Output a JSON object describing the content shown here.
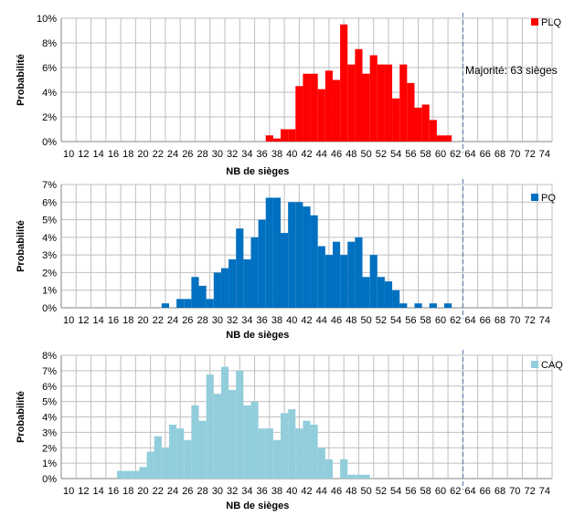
{
  "annotation": "Majorité: 63 sièges",
  "colors": {
    "grid": "#bfbfbf",
    "axis": "#868686",
    "majority_line": "#4f6d9a"
  },
  "chart_data": [
    {
      "type": "bar",
      "legend": "PLQ",
      "color": "#ff0000",
      "xlabel": "NB de sièges",
      "ylabel": "Probabilité",
      "ylim": [
        0,
        10
      ],
      "yticks": [
        "0%",
        "2%",
        "4%",
        "6%",
        "8%",
        "10%"
      ],
      "xticks": [
        "10",
        "12",
        "14",
        "16",
        "18",
        "20",
        "22",
        "24",
        "26",
        "28",
        "30",
        "32",
        "34",
        "36",
        "38",
        "40",
        "42",
        "44",
        "46",
        "48",
        "50",
        "52",
        "54",
        "56",
        "58",
        "60",
        "62",
        "64",
        "66",
        "68",
        "70",
        "72",
        "74"
      ],
      "majority": 63,
      "x": [
        37,
        38,
        39,
        40,
        41,
        42,
        43,
        44,
        45,
        46,
        47,
        48,
        49,
        50,
        51,
        52,
        53,
        54,
        55,
        56,
        57,
        58,
        59,
        60,
        61
      ],
      "values": [
        0.5,
        0.25,
        1.0,
        1.0,
        4.5,
        5.5,
        5.5,
        4.25,
        5.75,
        5.0,
        9.5,
        6.25,
        7.5,
        5.5,
        7.0,
        6.25,
        6.25,
        3.5,
        6.25,
        4.75,
        2.75,
        3.0,
        1.75,
        0.5,
        0.5
      ]
    },
    {
      "type": "bar",
      "legend": "PQ",
      "color": "#0070c0",
      "xlabel": "NB de sièges",
      "ylabel": "Probabilité",
      "ylim": [
        0,
        7
      ],
      "yticks": [
        "0%",
        "1%",
        "2%",
        "3%",
        "4%",
        "5%",
        "6%",
        "7%"
      ],
      "xticks": [
        "10",
        "12",
        "14",
        "16",
        "18",
        "20",
        "22",
        "24",
        "26",
        "28",
        "30",
        "32",
        "34",
        "36",
        "38",
        "40",
        "42",
        "44",
        "46",
        "48",
        "50",
        "52",
        "54",
        "56",
        "58",
        "60",
        "62",
        "64",
        "66",
        "68",
        "70",
        "72",
        "74"
      ],
      "majority": 63,
      "x": [
        23,
        25,
        26,
        27,
        28,
        29,
        30,
        31,
        32,
        33,
        34,
        35,
        36,
        37,
        38,
        39,
        40,
        41,
        42,
        43,
        44,
        45,
        46,
        47,
        48,
        49,
        50,
        51,
        52,
        53,
        54,
        55,
        57,
        59,
        61
      ],
      "values": [
        0.25,
        0.5,
        0.5,
        1.75,
        1.25,
        0.5,
        2.0,
        2.25,
        2.75,
        4.5,
        2.75,
        4.0,
        5.0,
        6.25,
        6.25,
        4.25,
        6.0,
        6.0,
        5.75,
        5.25,
        3.5,
        3.0,
        3.75,
        3.0,
        3.75,
        4.0,
        1.75,
        3.0,
        1.75,
        1.5,
        1.0,
        0.25,
        0.25,
        0.25,
        0.25
      ]
    },
    {
      "type": "bar",
      "legend": "CAQ",
      "color": "#92cddc",
      "xlabel": "NB de sièges",
      "ylabel": "Probabilité",
      "ylim": [
        0,
        8
      ],
      "yticks": [
        "0%",
        "1%",
        "2%",
        "3%",
        "4%",
        "5%",
        "6%",
        "7%",
        "8%"
      ],
      "xticks": [
        "10",
        "12",
        "14",
        "16",
        "18",
        "20",
        "22",
        "24",
        "26",
        "28",
        "30",
        "32",
        "34",
        "36",
        "38",
        "40",
        "42",
        "44",
        "46",
        "48",
        "50",
        "52",
        "54",
        "56",
        "58",
        "60",
        "62",
        "64",
        "66",
        "68",
        "70",
        "72",
        "74"
      ],
      "majority": 63,
      "x": [
        17,
        18,
        19,
        20,
        21,
        22,
        23,
        24,
        25,
        26,
        27,
        28,
        29,
        30,
        31,
        32,
        33,
        34,
        35,
        36,
        37,
        38,
        39,
        40,
        41,
        42,
        43,
        44,
        45,
        47,
        48,
        49,
        50
      ],
      "values": [
        0.5,
        0.5,
        0.5,
        0.75,
        1.75,
        2.75,
        2.0,
        3.5,
        3.25,
        2.5,
        4.75,
        3.75,
        6.75,
        5.5,
        7.25,
        5.75,
        7.0,
        4.75,
        5.0,
        3.25,
        3.25,
        2.5,
        4.25,
        4.5,
        3.25,
        3.75,
        3.5,
        2.0,
        1.25,
        1.25,
        0.25,
        0.25,
        0.25
      ]
    }
  ]
}
